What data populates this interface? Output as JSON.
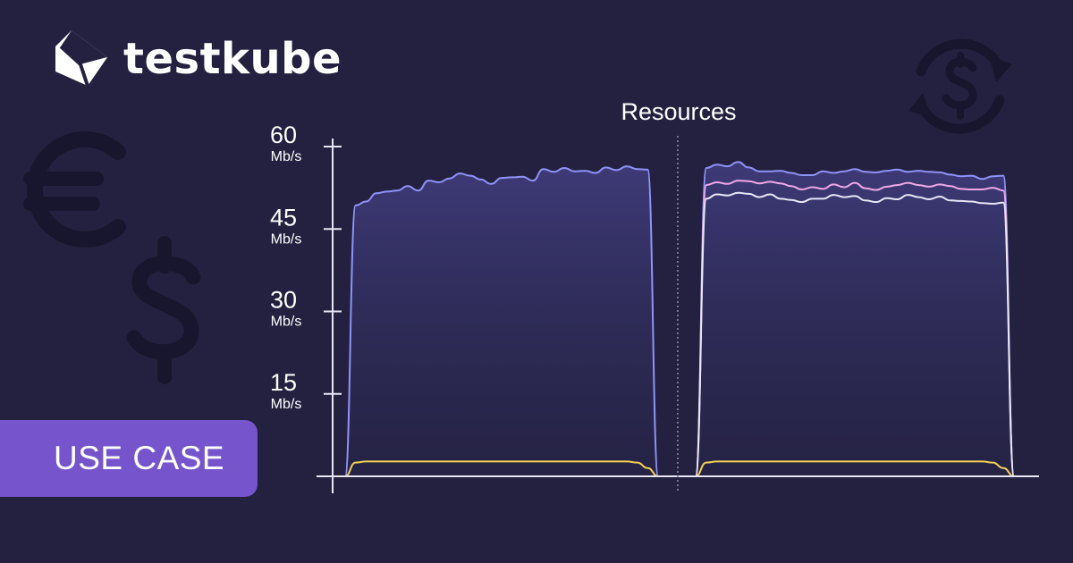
{
  "brand": {
    "name": "testkube"
  },
  "badge": {
    "label": "USE CASE"
  },
  "icons": [
    "testkube-logo-icon",
    "euro-icon",
    "dollar-icon",
    "currency-exchange-icon"
  ],
  "colors": {
    "background": "#23213f",
    "badge": "#7654cc",
    "series_blue": "#8f93f7",
    "series_pink": "#f0a8e8",
    "series_white": "#e8e6f5",
    "series_yellow": "#f2cf55",
    "deco": "#18162e"
  },
  "chart_data": {
    "type": "area",
    "title": "Resources",
    "xlabel": "",
    "ylabel": "",
    "ylim": [
      0,
      60
    ],
    "yticks": [
      {
        "value": 60,
        "label": "60",
        "unit": "Mb/s"
      },
      {
        "value": 45,
        "label": "45",
        "unit": "Mb/s"
      },
      {
        "value": 30,
        "label": "30",
        "unit": "Mb/s"
      },
      {
        "value": 15,
        "label": "15",
        "unit": "Mb/s"
      }
    ],
    "grid": false,
    "legend": "none",
    "panels": [
      {
        "series": [
          {
            "color": "#8f93f7",
            "filled": true,
            "values": [
              0,
              0,
              49.3,
              50,
              51.5,
              51.8,
              52,
              52.8,
              52,
              53.8,
              53.5,
              54.2,
              55.1,
              54.7,
              54,
              53.2,
              54.3,
              54.4,
              54.5,
              53.8,
              55.9,
              55.4,
              56.1,
              55.5,
              55.6,
              55.2,
              56.2,
              55.7,
              56.4,
              55.9,
              55.8,
              0,
              0
            ]
          },
          {
            "color": "#f2cf55",
            "filled": false,
            "values": [
              0,
              0,
              2.5,
              2.7,
              2.7,
              2.7,
              2.7,
              2.7,
              2.7,
              2.7,
              2.7,
              2.7,
              2.7,
              2.7,
              2.7,
              2.7,
              2.7,
              2.7,
              2.7,
              2.7,
              2.7,
              2.7,
              2.7,
              2.7,
              2.7,
              2.7,
              2.7,
              2.7,
              2.7,
              2.5,
              1.5,
              0,
              0
            ]
          }
        ]
      },
      {
        "series": [
          {
            "color": "#8f93f7",
            "filled": true,
            "values": [
              0,
              0,
              56.1,
              56.7,
              56.4,
              57.2,
              56.2,
              55.5,
              55.5,
              55.6,
              55.2,
              54.8,
              54.8,
              55.5,
              55.2,
              55.5,
              55.9,
              55.4,
              55.3,
              55.6,
              55.8,
              55.4,
              55.6,
              55.4,
              55.3,
              54.9,
              54.6,
              54.7,
              54.1,
              54.6,
              54.7,
              0,
              0
            ]
          },
          {
            "color": "#f0a8e8",
            "filled": false,
            "values": [
              0,
              0,
              53,
              53.5,
              53.2,
              53.8,
              53.7,
              53.3,
              53.6,
              53.3,
              52.8,
              52.2,
              52.6,
              52.3,
              53.1,
              52.6,
              53.4,
              52.4,
              52.1,
              52.7,
              53,
              53.4,
              53,
              52.7,
              53.1,
              52.8,
              52.3,
              52.2,
              52.2,
              52.5,
              52,
              0,
              0
            ]
          },
          {
            "color": "#e8e6f5",
            "filled": false,
            "values": [
              0,
              0,
              50.5,
              51.3,
              51.1,
              51.6,
              51.4,
              50.8,
              51.3,
              50.5,
              50.3,
              49.9,
              50.5,
              50.5,
              51.2,
              50.8,
              51,
              50.2,
              49.9,
              50.6,
              50.4,
              51.2,
              50.8,
              50.4,
              50.9,
              50.2,
              50.1,
              50,
              49.7,
              49.6,
              49.8,
              0,
              0
            ]
          },
          {
            "color": "#f2cf55",
            "filled": false,
            "values": [
              0,
              0,
              2.5,
              2.7,
              2.7,
              2.7,
              2.7,
              2.7,
              2.7,
              2.7,
              2.7,
              2.7,
              2.7,
              2.7,
              2.7,
              2.7,
              2.7,
              2.7,
              2.7,
              2.7,
              2.7,
              2.7,
              2.7,
              2.7,
              2.7,
              2.7,
              2.7,
              2.7,
              2.7,
              2.5,
              1.5,
              0,
              0
            ]
          }
        ]
      }
    ]
  }
}
